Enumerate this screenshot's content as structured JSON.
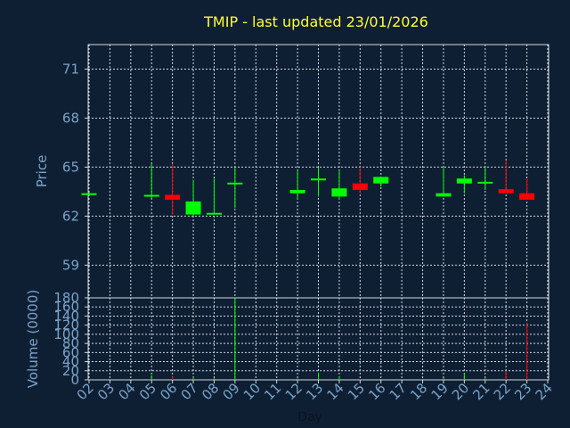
{
  "title": "TMIP - last updated 23/01/2026",
  "chart_data": [
    {
      "type": "candlestick",
      "ylabel": "Price",
      "ylim": [
        57,
        72.5
      ],
      "yticks": [
        "59",
        "62",
        "65",
        "68",
        "71"
      ],
      "grid": true,
      "up_color": "#00ff00",
      "down_color": "#ff0000",
      "candles": [
        {
          "x": 2.0,
          "open": 63.4,
          "high": 63.45,
          "low": 63.35,
          "close": 63.4
        },
        {
          "x": 5.0,
          "open": 63.2,
          "high": 65.2,
          "low": 63.1,
          "close": 63.3
        },
        {
          "x": 6.0,
          "open": 63.3,
          "high": 65.2,
          "low": 62.1,
          "close": 63.0
        },
        {
          "x": 7.0,
          "open": 62.1,
          "high": 64.2,
          "low": 62.0,
          "close": 62.9
        },
        {
          "x": 8.0,
          "open": 62.1,
          "high": 64.3,
          "low": 62.1,
          "close": 62.2
        },
        {
          "x": 9.0,
          "open": 64.0,
          "high": 65.0,
          "low": 62.5,
          "close": 64.05
        },
        {
          "x": 12.0,
          "open": 63.4,
          "high": 64.8,
          "low": 63.0,
          "close": 63.6
        },
        {
          "x": 13.0,
          "open": 64.2,
          "high": 65.0,
          "low": 63.2,
          "close": 64.3
        },
        {
          "x": 14.0,
          "open": 63.2,
          "high": 64.8,
          "low": 63.0,
          "close": 63.7
        },
        {
          "x": 15.0,
          "open": 64.0,
          "high": 65.0,
          "low": 63.4,
          "close": 63.6
        },
        {
          "x": 16.0,
          "open": 64.0,
          "high": 64.4,
          "low": 63.8,
          "close": 64.4
        },
        {
          "x": 19.0,
          "open": 63.2,
          "high": 65.0,
          "low": 63.2,
          "close": 63.4
        },
        {
          "x": 20.0,
          "open": 64.0,
          "high": 64.5,
          "low": 63.4,
          "close": 64.3
        },
        {
          "x": 21.0,
          "open": 64.0,
          "high": 65.0,
          "low": 63.6,
          "close": 64.1
        },
        {
          "x": 22.0,
          "open": 63.65,
          "high": 65.4,
          "low": 63.4,
          "close": 63.4
        },
        {
          "x": 23.0,
          "open": 63.4,
          "high": 64.3,
          "low": 63.0,
          "close": 63.0
        }
      ]
    },
    {
      "type": "bar",
      "ylabel": "Volume (0000)",
      "ylim": [
        0,
        180
      ],
      "yticks": [
        "0",
        "20",
        "40",
        "60",
        "80",
        "100",
        "120",
        "140",
        "160",
        "180"
      ],
      "grid": true,
      "volumes": [
        {
          "x": 2.0,
          "value": 0,
          "color": "#00ff00"
        },
        {
          "x": 5.0,
          "value": 10,
          "color": "#00ff00"
        },
        {
          "x": 6.0,
          "value": 8,
          "color": "#ff0000"
        },
        {
          "x": 7.0,
          "value": 6,
          "color": "#00ff00"
        },
        {
          "x": 8.0,
          "value": 4,
          "color": "#00ff00"
        },
        {
          "x": 9.0,
          "value": 180,
          "color": "#00ff00"
        },
        {
          "x": 12.0,
          "value": 3,
          "color": "#00ff00"
        },
        {
          "x": 13.0,
          "value": 16,
          "color": "#00ff00"
        },
        {
          "x": 14.0,
          "value": 8,
          "color": "#00ff00"
        },
        {
          "x": 15.0,
          "value": 3,
          "color": "#ff0000"
        },
        {
          "x": 16.0,
          "value": 2,
          "color": "#00ff00"
        },
        {
          "x": 19.0,
          "value": 4,
          "color": "#00ff00"
        },
        {
          "x": 20.0,
          "value": 15,
          "color": "#00ff00"
        },
        {
          "x": 21.0,
          "value": 5,
          "color": "#00ff00"
        },
        {
          "x": 22.0,
          "value": 20,
          "color": "#ff0000"
        },
        {
          "x": 23.0,
          "value": 125,
          "color": "#ff0000"
        }
      ],
      "xlabel": "Day",
      "xlim": [
        2,
        24
      ],
      "xticks": [
        "02",
        "03",
        "04",
        "05",
        "06",
        "07",
        "08",
        "09",
        "10",
        "11",
        "12",
        "13",
        "14",
        "15",
        "16",
        "17",
        "18",
        "19",
        "20",
        "21",
        "22",
        "23",
        "24"
      ]
    }
  ]
}
